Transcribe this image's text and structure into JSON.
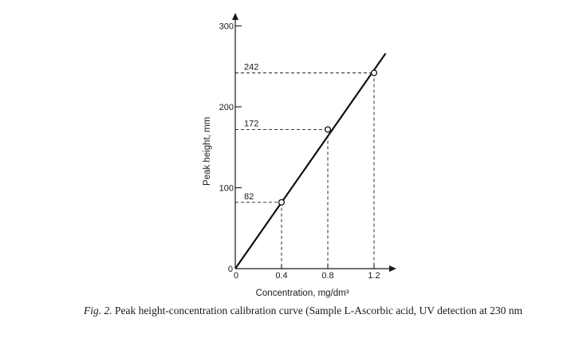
{
  "chart_data": {
    "type": "line",
    "xlabel": "Concentration, mg/dm³",
    "ylabel": "Peak height, mm",
    "xlim": [
      0,
      1.25
    ],
    "ylim": [
      0,
      300
    ],
    "x_ticks": [
      "0",
      "0.4",
      "0.8",
      "1.2"
    ],
    "y_ticks": [
      "0",
      "100",
      "200",
      "300"
    ],
    "grid": false,
    "legend": "none",
    "series": [
      {
        "x": [
          0.4,
          0.8,
          1.2
        ],
        "y": [
          82,
          172,
          242
        ],
        "style": "open-circle-markers"
      }
    ],
    "fit_line": {
      "x": [
        0,
        1.3
      ],
      "y": [
        0,
        266
      ]
    },
    "annotations": [
      {
        "text": "82",
        "x": 0.4,
        "y": 82
      },
      {
        "text": "172",
        "x": 0.8,
        "y": 172
      },
      {
        "text": "242",
        "x": 1.2,
        "y": 242
      }
    ]
  },
  "caption": {
    "fig_label": "Fig. 2.",
    "text": "Peak height-concentration calibration curve (Sample L-Ascorbic acid, UV detection at 230 nm"
  }
}
